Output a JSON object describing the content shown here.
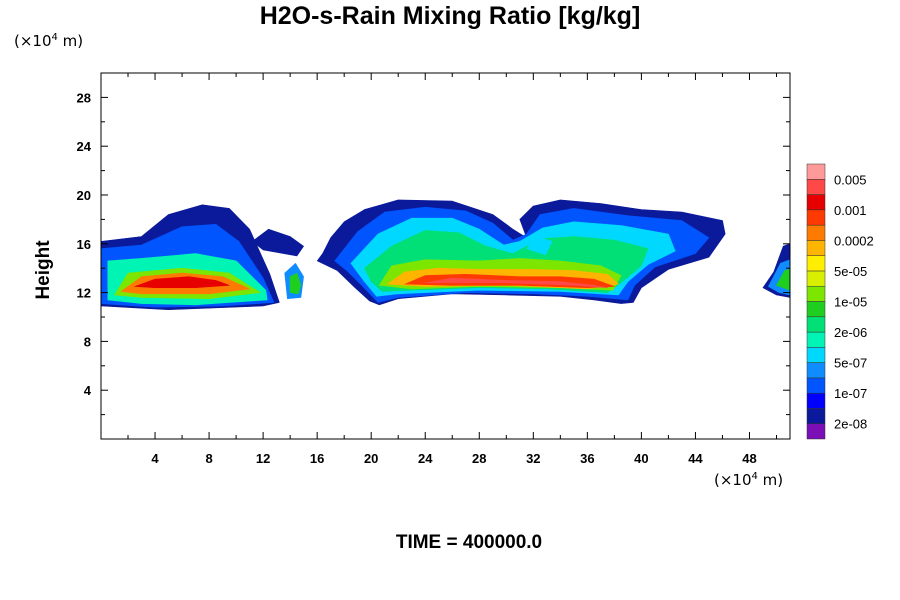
{
  "chart_data": {
    "type": "heatmap",
    "title": "H2O-s-Rain Mixing Ratio [kg/kg]",
    "ylabel": "Height",
    "xlabel": "",
    "x_unit": {
      "prefix": "(×10",
      "exp": "4",
      "suffix": " m)"
    },
    "y_unit": {
      "prefix": "(×10",
      "exp": "4",
      "suffix": " m)"
    },
    "xlim": [
      0,
      51
    ],
    "ylim": [
      0,
      30
    ],
    "xticks": [
      4,
      8,
      12,
      16,
      20,
      24,
      28,
      32,
      36,
      40,
      44,
      48
    ],
    "yticks": [
      4,
      8,
      12,
      16,
      20,
      24,
      28
    ],
    "footer": "TIME = 400000.0",
    "colorbar": {
      "colors": [
        "#7b0fb5",
        "#0b1a9a",
        "#0000ff",
        "#0055ff",
        "#0f8cff",
        "#00d8ff",
        "#00f5b5",
        "#00e077",
        "#1fcf1f",
        "#7ce600",
        "#d8f000",
        "#ffee00",
        "#ffb400",
        "#ff7a00",
        "#ff3a00",
        "#e60000",
        "#ff4848",
        "#ff9a9a"
      ],
      "labels": [
        "2e-08",
        "1e-07",
        "5e-07",
        "2e-06",
        "1e-05",
        "5e-05",
        "0.0002",
        "0.001",
        "0.005"
      ]
    },
    "regions": [
      {
        "level": 1,
        "poly": [
          [
            0,
            10.9
          ],
          [
            0,
            16.2
          ],
          [
            3,
            16.6
          ],
          [
            5,
            18.4
          ],
          [
            7.5,
            19.2
          ],
          [
            9.5,
            18.9
          ],
          [
            11,
            17.2
          ],
          [
            12.5,
            13.5
          ],
          [
            13.2,
            11.2
          ],
          [
            12,
            10.9
          ],
          [
            5,
            10.6
          ]
        ]
      },
      {
        "level": 3,
        "poly": [
          [
            0,
            11.1
          ],
          [
            0,
            15.6
          ],
          [
            3,
            15.9
          ],
          [
            6,
            17.4
          ],
          [
            8.5,
            17.6
          ],
          [
            10.2,
            16.2
          ],
          [
            12,
            13.2
          ],
          [
            12.8,
            11.2
          ],
          [
            9,
            10.9
          ],
          [
            4,
            10.8
          ]
        ]
      },
      {
        "level": 6,
        "poly": [
          [
            0.5,
            11.4
          ],
          [
            0.5,
            14.6
          ],
          [
            3,
            14.8
          ],
          [
            7,
            15.2
          ],
          [
            10,
            14.6
          ],
          [
            12.2,
            12.2
          ],
          [
            12.3,
            11.4
          ],
          [
            7,
            11.0
          ],
          [
            3,
            11.1
          ]
        ]
      },
      {
        "level": 9,
        "poly": [
          [
            1,
            11.8
          ],
          [
            2,
            13.6
          ],
          [
            6,
            14.0
          ],
          [
            9.5,
            13.6
          ],
          [
            11.8,
            12.0
          ],
          [
            8,
            11.5
          ],
          [
            3,
            11.6
          ]
        ]
      },
      {
        "level": 13,
        "poly": [
          [
            1.5,
            12.1
          ],
          [
            3,
            13.3
          ],
          [
            6,
            13.6
          ],
          [
            9,
            13.3
          ],
          [
            11,
            12.3
          ],
          [
            8,
            11.9
          ],
          [
            3,
            11.9
          ]
        ]
      },
      {
        "level": 15,
        "poly": [
          [
            2.5,
            12.5
          ],
          [
            4,
            13.1
          ],
          [
            6.5,
            13.3
          ],
          [
            8.5,
            13.0
          ],
          [
            9.5,
            12.6
          ],
          [
            7,
            12.4
          ],
          [
            4,
            12.4
          ]
        ]
      },
      {
        "level": 1,
        "poly": [
          [
            11.2,
            16.2
          ],
          [
            12.4,
            17.2
          ],
          [
            14,
            16.6
          ],
          [
            15,
            15.8
          ],
          [
            14.5,
            15.0
          ],
          [
            13,
            15.3
          ],
          [
            12,
            15.5
          ]
        ]
      },
      {
        "level": 4,
        "poly": [
          [
            13.8,
            11.5
          ],
          [
            13.6,
            13.6
          ],
          [
            14.4,
            14.4
          ],
          [
            15.0,
            13.3
          ],
          [
            14.8,
            11.6
          ]
        ]
      },
      {
        "level": 8,
        "poly": [
          [
            14.0,
            12.0
          ],
          [
            14.0,
            13.3
          ],
          [
            14.5,
            13.6
          ],
          [
            14.8,
            12.6
          ],
          [
            14.6,
            11.9
          ]
        ]
      },
      {
        "level": 1,
        "poly": [
          [
            16.0,
            14.6
          ],
          [
            16.4,
            15.2
          ],
          [
            17.0,
            16.5
          ],
          [
            18.0,
            17.8
          ],
          [
            19.5,
            18.8
          ],
          [
            22,
            19.6
          ],
          [
            26,
            19.5
          ],
          [
            29,
            18.4
          ],
          [
            30.5,
            17.2
          ],
          [
            31.5,
            16.5
          ],
          [
            31,
            18.0
          ],
          [
            32,
            19.1
          ],
          [
            34,
            19.6
          ],
          [
            37,
            19.3
          ],
          [
            40,
            18.8
          ],
          [
            43,
            18.6
          ],
          [
            46,
            17.9
          ],
          [
            46.2,
            16.8
          ],
          [
            45,
            14.9
          ],
          [
            42,
            13.9
          ],
          [
            40,
            12.4
          ],
          [
            39.4,
            11.2
          ],
          [
            38.5,
            11.1
          ],
          [
            36.5,
            11.4
          ],
          [
            34,
            11.7
          ],
          [
            30,
            11.8
          ],
          [
            26,
            11.9
          ],
          [
            22,
            11.5
          ],
          [
            20.6,
            11.0
          ],
          [
            19.9,
            11.3
          ],
          [
            18.8,
            12.4
          ],
          [
            17.5,
            13.8
          ]
        ]
      },
      {
        "level": 3,
        "poly": [
          [
            17.3,
            14.6
          ],
          [
            19,
            17.0
          ],
          [
            21,
            18.6
          ],
          [
            24,
            19.0
          ],
          [
            27,
            18.7
          ],
          [
            29,
            17.7
          ],
          [
            30.5,
            16.3
          ],
          [
            31.5,
            16.8
          ],
          [
            32.5,
            18.4
          ],
          [
            35,
            18.9
          ],
          [
            39,
            18.3
          ],
          [
            43,
            17.9
          ],
          [
            45,
            16.5
          ],
          [
            44,
            15.2
          ],
          [
            41,
            14.1
          ],
          [
            39.5,
            12.6
          ],
          [
            39,
            11.4
          ],
          [
            36,
            11.7
          ],
          [
            32,
            11.9
          ],
          [
            27,
            12.0
          ],
          [
            22,
            11.6
          ],
          [
            20.5,
            11.2
          ],
          [
            19.3,
            12.6
          ],
          [
            18.2,
            13.8
          ]
        ]
      },
      {
        "level": 5,
        "poly": [
          [
            18.5,
            14.4
          ],
          [
            20.5,
            16.8
          ],
          [
            23,
            18.1
          ],
          [
            26,
            18.1
          ],
          [
            28,
            17.2
          ],
          [
            29.8,
            15.9
          ],
          [
            31,
            16.2
          ],
          [
            32.7,
            17.3
          ],
          [
            35,
            17.8
          ],
          [
            38.5,
            17.5
          ],
          [
            42,
            16.8
          ],
          [
            42.5,
            15.4
          ],
          [
            40.5,
            14.3
          ],
          [
            39,
            12.9
          ],
          [
            38.3,
            11.8
          ],
          [
            34,
            12.1
          ],
          [
            28,
            12.2
          ],
          [
            22,
            11.9
          ],
          [
            20.4,
            11.7
          ],
          [
            19.5,
            12.9
          ]
        ]
      },
      {
        "level": 7,
        "poly": [
          [
            19.5,
            14.0
          ],
          [
            21.5,
            15.8
          ],
          [
            24,
            17.1
          ],
          [
            26.5,
            16.9
          ],
          [
            28.5,
            15.8
          ],
          [
            30.5,
            15.2
          ],
          [
            32.5,
            16.4
          ],
          [
            35,
            16.6
          ],
          [
            38,
            16.3
          ],
          [
            40.5,
            15.6
          ],
          [
            40,
            14.2
          ],
          [
            38.5,
            12.8
          ],
          [
            37.5,
            12.0
          ],
          [
            33,
            12.3
          ],
          [
            28,
            12.4
          ],
          [
            23,
            12.2
          ],
          [
            20.8,
            12.1
          ],
          [
            20,
            12.9
          ]
        ]
      },
      {
        "level": 9,
        "poly": [
          [
            20.6,
            12.6
          ],
          [
            21.5,
            14.2
          ],
          [
            24,
            14.7
          ],
          [
            28,
            14.6
          ],
          [
            31,
            14.8
          ],
          [
            34,
            14.6
          ],
          [
            37,
            14.2
          ],
          [
            38.5,
            13.4
          ],
          [
            37.9,
            12.2
          ],
          [
            34,
            12.4
          ],
          [
            28,
            12.5
          ],
          [
            23,
            12.3
          ]
        ]
      },
      {
        "level": 12,
        "poly": [
          [
            21.2,
            12.7
          ],
          [
            22.5,
            13.7
          ],
          [
            25,
            14.0
          ],
          [
            28,
            13.9
          ],
          [
            32,
            13.9
          ],
          [
            35,
            13.8
          ],
          [
            37.5,
            13.5
          ],
          [
            38.3,
            12.7
          ],
          [
            36,
            12.3
          ],
          [
            30,
            12.6
          ],
          [
            24,
            12.5
          ]
        ]
      },
      {
        "level": 14,
        "poly": [
          [
            22.5,
            12.7
          ],
          [
            24,
            13.4
          ],
          [
            27,
            13.5
          ],
          [
            31,
            13.3
          ],
          [
            34,
            13.3
          ],
          [
            36.5,
            13.1
          ],
          [
            38,
            12.5
          ],
          [
            36,
            12.4
          ],
          [
            31,
            12.6
          ],
          [
            26,
            12.6
          ]
        ]
      },
      {
        "level": 16,
        "poly": [
          [
            24,
            12.8
          ],
          [
            26,
            13.2
          ],
          [
            30,
            13.0
          ],
          [
            34,
            12.9
          ],
          [
            36.5,
            12.6
          ],
          [
            37.5,
            12.4
          ],
          [
            35,
            12.6
          ],
          [
            30,
            12.8
          ],
          [
            26,
            12.8
          ]
        ]
      },
      {
        "level": 5,
        "poly": [
          [
            31.5,
            15.6
          ],
          [
            32.2,
            16.6
          ],
          [
            33.4,
            16.2
          ],
          [
            32.9,
            15.1
          ]
        ]
      },
      {
        "level": 1,
        "poly": [
          [
            49,
            12.4
          ],
          [
            49.8,
            13.7
          ],
          [
            50.5,
            15.8
          ],
          [
            51,
            16.0
          ],
          [
            51,
            11.6
          ],
          [
            50,
            11.8
          ]
        ]
      },
      {
        "level": 4,
        "poly": [
          [
            49.4,
            12.5
          ],
          [
            50.3,
            14.4
          ],
          [
            51,
            14.7
          ],
          [
            51,
            11.8
          ],
          [
            50.2,
            12.0
          ]
        ]
      },
      {
        "level": 8,
        "poly": [
          [
            50,
            12.6
          ],
          [
            50.6,
            13.8
          ],
          [
            51,
            13.9
          ],
          [
            51,
            12.2
          ]
        ]
      }
    ]
  }
}
